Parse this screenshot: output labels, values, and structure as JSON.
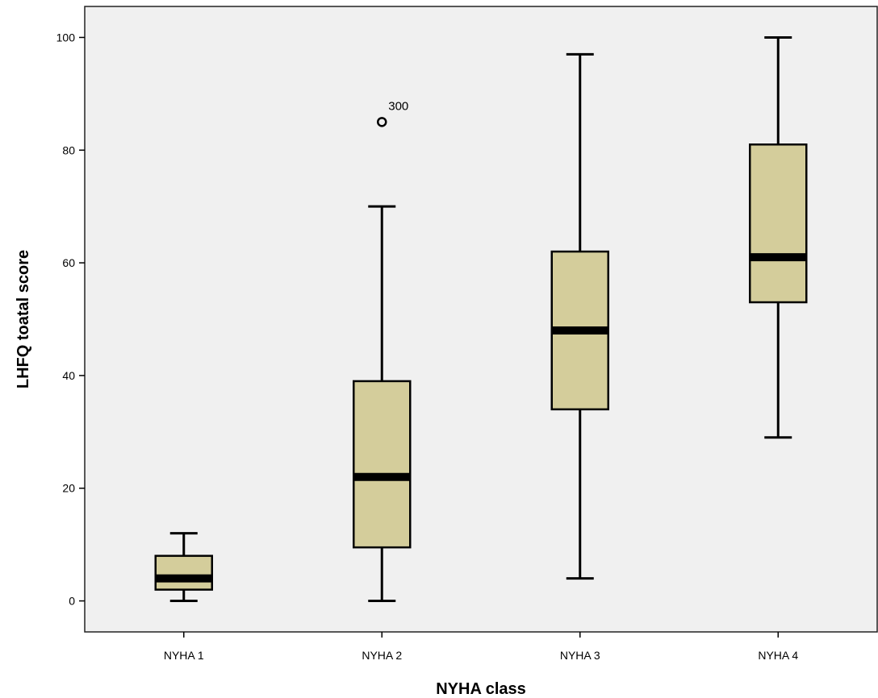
{
  "chart_data": {
    "type": "boxplot",
    "title": "",
    "xlabel": "NYHA class",
    "ylabel": "LHFQ toatal score",
    "categories": [
      "NYHA 1",
      "NYHA 2",
      "NYHA 3",
      "NYHA 4"
    ],
    "boxes": [
      {
        "category": "NYHA 1",
        "whisker_low": 0,
        "q1": 2,
        "median": 4,
        "q3": 8,
        "whisker_high": 12
      },
      {
        "category": "NYHA 2",
        "whisker_low": 0,
        "q1": 9.5,
        "median": 22,
        "q3": 39,
        "whisker_high": 70
      },
      {
        "category": "NYHA 3",
        "whisker_low": 4,
        "q1": 34,
        "median": 48,
        "q3": 62,
        "whisker_high": 97
      },
      {
        "category": "NYHA 4",
        "whisker_low": 29,
        "q1": 53,
        "median": 61,
        "q3": 81,
        "whisker_high": 100
      }
    ],
    "outliers": [
      {
        "category": "NYHA 2",
        "value": 85,
        "label": "300"
      }
    ],
    "y_ticks": [
      0,
      20,
      40,
      60,
      80,
      100
    ],
    "y_tick_labels": [
      "0",
      "20",
      "40",
      "60",
      "80",
      "100"
    ],
    "ylim": [
      -5.5,
      105.5
    ],
    "grid": false,
    "colors": {
      "box_fill": "#d4cd9b",
      "plot_background": "#f0f0f0",
      "stroke": "#000000"
    }
  }
}
